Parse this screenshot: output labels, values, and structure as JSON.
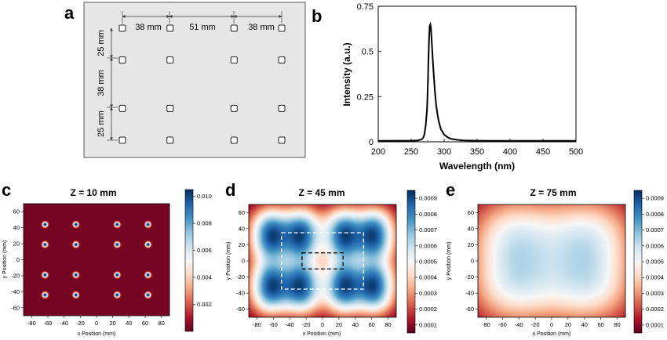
{
  "panel_letters": {
    "a": "a",
    "b": "b",
    "c": "c",
    "d": "d",
    "e": "e"
  },
  "panel_a": {
    "spacing_top": [
      "38 mm",
      "51 mm",
      "38 mm"
    ],
    "spacing_left": [
      "25 mm",
      "38 mm",
      "25 mm"
    ],
    "layout_mm": {
      "x": [
        -63.5,
        -25.5,
        25.5,
        63.5
      ],
      "y": [
        44,
        19,
        -19,
        -44
      ]
    },
    "background": "#e6e6e6"
  },
  "chart_data": [
    {
      "type": "line",
      "title": "",
      "xlabel": "Wavelength (nm)",
      "ylabel": "Intensity (a.u.)",
      "xlim": [
        200,
        500
      ],
      "ylim": [
        0,
        0.75
      ],
      "xticks": [
        "200",
        "250",
        "300",
        "350",
        "400",
        "450",
        "500"
      ],
      "yticks": [
        "0",
        "0.25",
        "0.5",
        "0.75"
      ],
      "x": [
        200,
        250,
        260,
        265,
        268,
        270,
        272,
        274,
        275,
        276,
        277,
        278,
        279,
        280,
        281,
        282,
        283,
        284,
        285,
        286,
        288,
        290,
        292,
        295,
        300,
        305,
        310,
        320,
        330,
        350,
        400,
        450,
        500
      ],
      "y": [
        0.005,
        0.006,
        0.008,
        0.012,
        0.02,
        0.04,
        0.09,
        0.18,
        0.28,
        0.42,
        0.56,
        0.64,
        0.65,
        0.63,
        0.57,
        0.5,
        0.44,
        0.38,
        0.33,
        0.28,
        0.2,
        0.15,
        0.11,
        0.07,
        0.04,
        0.025,
        0.017,
        0.011,
        0.008,
        0.006,
        0.005,
        0.005,
        0.005
      ],
      "color": "#000000"
    },
    {
      "type": "heatmap",
      "title": "Z = 10 mm",
      "xlabel": "x Position (mm)",
      "ylabel": "y Position (mm)",
      "xlim": [
        -90,
        90
      ],
      "ylim": [
        -70,
        70
      ],
      "xticks": [
        "-80",
        "-60",
        "-40",
        "-20",
        "0",
        "20",
        "40",
        "60",
        "80"
      ],
      "yticks": [
        "-60",
        "-40",
        "-20",
        "0",
        "20",
        "40",
        "60"
      ],
      "colorbar_ticks": [
        "0.002",
        "0.004",
        "0.006",
        "0.008",
        "0.010"
      ],
      "colorbar_range": [
        0,
        0.0105
      ],
      "sources_mm": {
        "x": [
          -63.5,
          -25.5,
          25.5,
          63.5
        ],
        "y": [
          44,
          19,
          -19,
          -44
        ]
      },
      "sigma_mm": 2.5,
      "colormap": [
        "#67001f",
        "#b2182b",
        "#d6604d",
        "#f4a582",
        "#fddbc7",
        "#f7f7f7",
        "#d1e5f0",
        "#92c5de",
        "#4393c3",
        "#2166ac",
        "#053061"
      ]
    },
    {
      "type": "heatmap",
      "title": "Z = 45 mm",
      "xlabel": "x Position (mm)",
      "ylabel": "y Position (mm)",
      "xlim": [
        -90,
        90
      ],
      "ylim": [
        -70,
        70
      ],
      "xticks": [
        "-80",
        "-60",
        "-40",
        "-20",
        "0",
        "20",
        "40",
        "60",
        "80"
      ],
      "yticks": [
        "-60",
        "-40",
        "-20",
        "0",
        "20",
        "40",
        "60"
      ],
      "colorbar_ticks": [
        "0.0001",
        "0.0002",
        "0.0003",
        "0.0004",
        "0.0005",
        "0.0006",
        "0.0007",
        "0.0008",
        "0.0009"
      ],
      "colorbar_range": [
        5e-05,
        0.00095
      ],
      "sources_mm": {
        "x": [
          -63.5,
          -25.5,
          25.5,
          63.5
        ],
        "y": [
          44,
          19,
          -19,
          -44
        ]
      },
      "sigma_mm": 16,
      "outer_box_mm": [
        -50,
        50,
        -35,
        35
      ],
      "inner_box_mm": [
        -25,
        25,
        -10,
        10
      ]
    },
    {
      "type": "heatmap",
      "title": "Z = 75 mm",
      "xlabel": "x Position (mm)",
      "ylabel": "y Position (mm)",
      "xlim": [
        -90,
        90
      ],
      "ylim": [
        -70,
        70
      ],
      "xticks": [
        "-80",
        "-60",
        "-40",
        "-20",
        "0",
        "20",
        "40",
        "60",
        "80"
      ],
      "yticks": [
        "-60",
        "-40",
        "-20",
        "0",
        "20",
        "40",
        "60"
      ],
      "colorbar_ticks": [
        "0.0001",
        "0.0002",
        "0.0003",
        "0.0004",
        "0.0005",
        "0.0006",
        "0.0007",
        "0.0008",
        "0.0009"
      ],
      "colorbar_range": [
        5e-05,
        0.00095
      ],
      "sources_mm": {
        "x": [
          -63.5,
          -25.5,
          25.5,
          63.5
        ],
        "y": [
          44,
          19,
          -19,
          -44
        ]
      },
      "sigma_mm": 30,
      "peak_value": 0.00064,
      "edge_value": 5e-05
    }
  ]
}
